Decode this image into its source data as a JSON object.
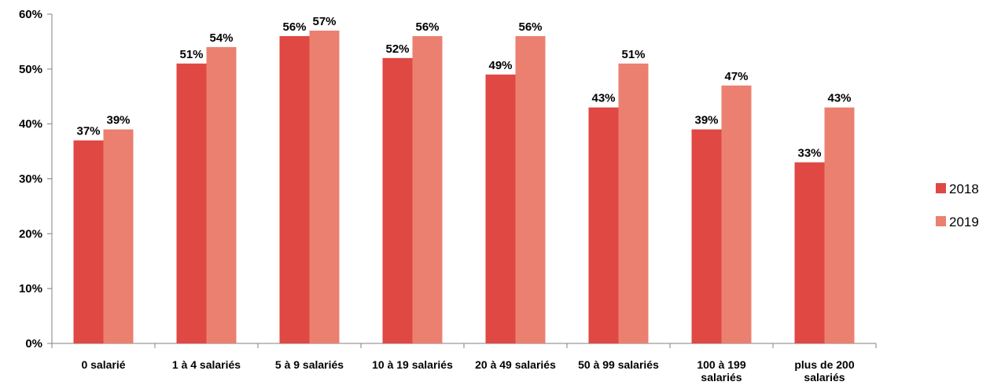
{
  "chart_data": {
    "type": "bar",
    "categories": [
      [
        "0 salarié"
      ],
      [
        "1 à 4 salariés"
      ],
      [
        "5 à 9 salariés"
      ],
      [
        "10 à 19 salariés"
      ],
      [
        "20 à 49 salariés"
      ],
      [
        "50 à 99 salariés"
      ],
      [
        "100 à 199",
        "salariés"
      ],
      [
        "plus de 200",
        "salariés"
      ]
    ],
    "series": [
      {
        "name": "2018",
        "color": "#e04843",
        "values": [
          37,
          51,
          56,
          52,
          49,
          43,
          39,
          33
        ],
        "labels": [
          "37%",
          "51%",
          "56%",
          "52%",
          "49%",
          "43%",
          "39%",
          "33%"
        ]
      },
      {
        "name": "2019",
        "color": "#eb8070",
        "values": [
          39,
          54,
          57,
          56,
          56,
          51,
          47,
          43
        ],
        "labels": [
          "39%",
          "54%",
          "57%",
          "56%",
          "56%",
          "51%",
          "47%",
          "43%"
        ]
      }
    ],
    "y_ticks": [
      0,
      10,
      20,
      30,
      40,
      50,
      60
    ],
    "y_tick_labels": [
      "0%",
      "10%",
      "20%",
      "30%",
      "40%",
      "50%",
      "60%"
    ],
    "ylim": [
      0,
      60
    ],
    "grid": false,
    "legend_position": "right"
  }
}
